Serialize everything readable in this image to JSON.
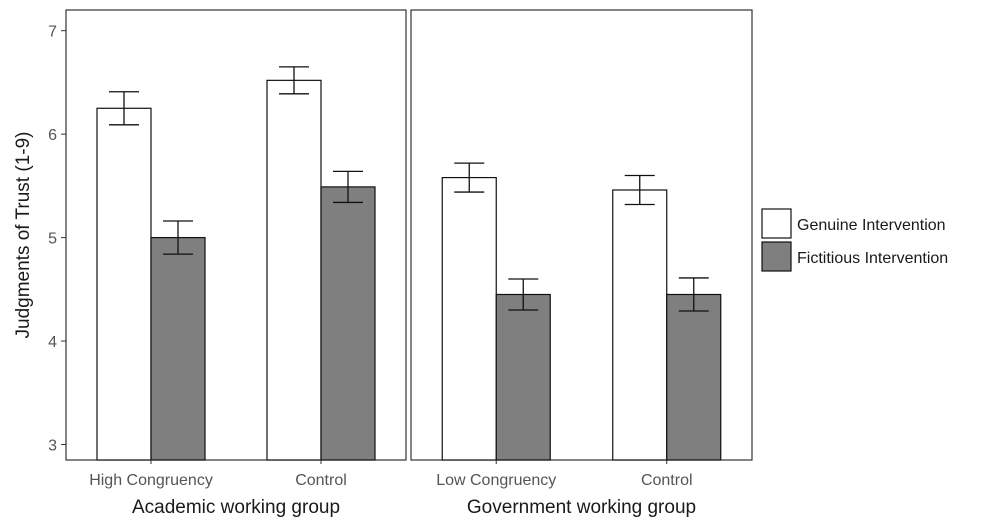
{
  "chart_data": {
    "type": "bar",
    "ylabel": "Judgments of Trust (1-9)",
    "ylim": [
      2.85,
      7.2
    ],
    "yticks": [
      3,
      4,
      5,
      6,
      7
    ],
    "grid": false,
    "legend_position": "right",
    "series": [
      {
        "name": "Genuine Intervention",
        "color": "#ffffff"
      },
      {
        "name": "Fictitious Intervention",
        "color": "#7f7f7f"
      }
    ],
    "panels": [
      {
        "xlabel": "Academic working group",
        "categories": [
          "High Congruency",
          "Control"
        ],
        "values": [
          [
            6.25,
            5.0
          ],
          [
            6.52,
            5.49
          ]
        ],
        "errors": [
          [
            0.16,
            0.16
          ],
          [
            0.13,
            0.15
          ]
        ]
      },
      {
        "xlabel": "Government working group",
        "categories": [
          "Low Congruency",
          "Control"
        ],
        "values": [
          [
            5.58,
            4.45
          ],
          [
            5.46,
            4.45
          ]
        ],
        "errors": [
          [
            0.14,
            0.15
          ],
          [
            0.14,
            0.16
          ]
        ]
      }
    ]
  }
}
